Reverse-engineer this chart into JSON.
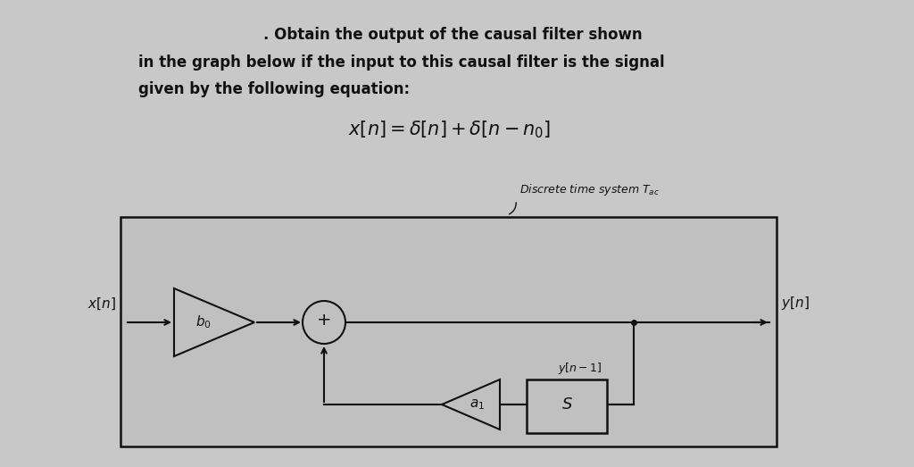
{
  "bg_color": "#c8c8c8",
  "text_color": "#111111",
  "text_line1": ". Obtain the output of the causal filter shown",
  "text_line2": "in the graph below if the input to this causal filter is the signal",
  "text_line3": "given by the following equation:",
  "equation": "$x[n] = \\delta[n] + \\delta[n - n_0]$",
  "discrete_label": "Discrete time system $T_{ac}$",
  "xn_label": "$x[n]$",
  "yn_label": "$y[n]$",
  "b0_label": "$b_0$",
  "a1_label": "$a_1$",
  "plus_label": "+",
  "s_label": "$S$",
  "yn1_label": "$y[n-1]$",
  "diagram_bg": "#c0c0c0",
  "line_color": "#111111",
  "text_fontsize": 12,
  "eq_fontsize": 15,
  "label_fontsize": 11,
  "discrete_fontsize": 9
}
